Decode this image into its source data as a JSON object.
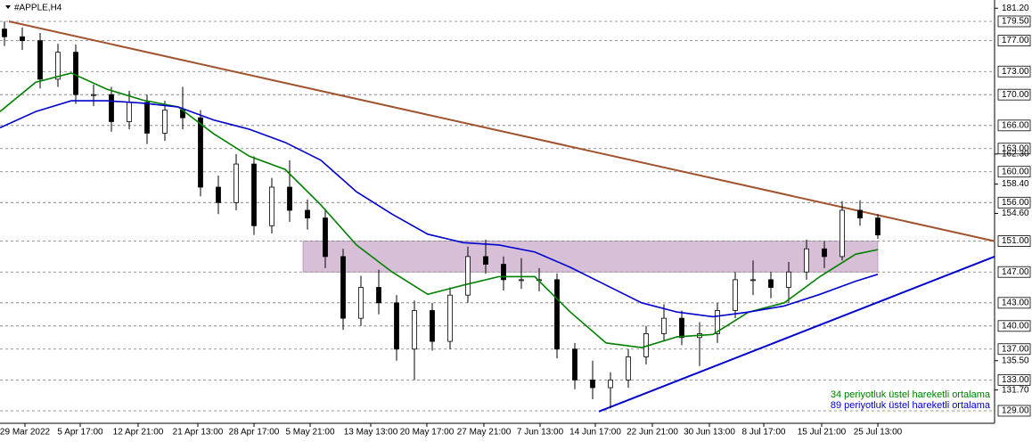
{
  "chart_data": {
    "type": "candlestick",
    "title": "#APPLE,H4",
    "xlim": [
      0,
      223.2
    ],
    "ylim": [
      127.38,
      182.27
    ],
    "xticks": [
      {
        "value": 5.6,
        "label": "29 Mar 2022"
      },
      {
        "value": 18,
        "label": "5 Apr 17:00"
      },
      {
        "value": 31,
        "label": "12 Apr 21:00"
      },
      {
        "value": 44.4,
        "label": "21 Apr 13:00"
      },
      {
        "value": 57,
        "label": "28 Apr 17:00"
      },
      {
        "value": 69.6,
        "label": "5 May 21:00"
      },
      {
        "value": 83.2,
        "label": "13 May 13:00"
      },
      {
        "value": 95.8,
        "label": "20 May 17:00"
      },
      {
        "value": 108.6,
        "label": "27 May 21:00"
      },
      {
        "value": 121.2,
        "label": "7 Jun 13:00"
      },
      {
        "value": 133.6,
        "label": "14 Jun 17:00"
      },
      {
        "value": 146.4,
        "label": "22 Jun 21:00"
      },
      {
        "value": 159.2,
        "label": "30 Jun 13:00"
      },
      {
        "value": 171.4,
        "label": "8 Jul 17:00"
      },
      {
        "value": 184.4,
        "label": "15 Jul 21:00"
      },
      {
        "value": 197,
        "label": "25 Jul 13:00"
      }
    ],
    "yticks": [
      {
        "value": 181.2,
        "label": "181.20"
      },
      {
        "value": 162.3,
        "label": "162.30"
      },
      {
        "value": 158.4,
        "label": "158.40"
      },
      {
        "value": 154.6,
        "label": "154.60"
      },
      {
        "value": 135.5,
        "label": "135.50"
      },
      {
        "value": 131.7,
        "label": "131.70"
      }
    ],
    "levels": [
      {
        "value": 179.5,
        "label": "179.50"
      },
      {
        "value": 177,
        "label": "177.00"
      },
      {
        "value": 173,
        "label": "173.00"
      },
      {
        "value": 170,
        "label": "170.00"
      },
      {
        "value": 166,
        "label": "166.00"
      },
      {
        "value": 163,
        "label": "163.00"
      },
      {
        "value": 160,
        "label": "160.00"
      },
      {
        "value": 156,
        "label": "156.00"
      },
      {
        "value": 151,
        "label": "151.00"
      },
      {
        "value": 147,
        "label": "147.00"
      },
      {
        "value": 143,
        "label": "143.00"
      },
      {
        "value": 140,
        "label": "140.00"
      },
      {
        "value": 137,
        "label": "137.00"
      },
      {
        "value": 133,
        "label": "133.00"
      },
      {
        "value": 129,
        "label": "129.00"
      }
    ],
    "candles": {
      "x": [
        1,
        5,
        9,
        13,
        17,
        21,
        25,
        29,
        33,
        37,
        41,
        45,
        49,
        53,
        57,
        61,
        65,
        69,
        73,
        77,
        81,
        85,
        89,
        93,
        97,
        101,
        105,
        109,
        113,
        117,
        121,
        125,
        129,
        133,
        137,
        141,
        145,
        149,
        153,
        157,
        161,
        165,
        169,
        173,
        177,
        181,
        185,
        189,
        193,
        197
      ],
      "open": [
        178.5,
        177.5,
        177,
        172,
        175.5,
        170,
        170,
        166.5,
        169,
        165,
        168,
        167,
        158,
        156,
        161,
        153,
        158,
        155,
        154,
        149,
        141,
        145,
        143,
        137,
        142,
        138,
        144,
        149,
        148,
        146,
        146,
        146,
        137,
        133,
        132,
        133,
        136,
        139,
        141,
        138.5,
        139,
        142,
        146,
        146,
        145,
        147,
        150,
        149,
        155,
        154
      ],
      "high": [
        179.5,
        178.7,
        178,
        176.6,
        176.5,
        171.3,
        171,
        170.5,
        170,
        169.2,
        171,
        168,
        159.5,
        162.3,
        162,
        159.2,
        161.5,
        156.4,
        155.2,
        150,
        146.5,
        147.3,
        144,
        143.3,
        143,
        145,
        150.3,
        151.2,
        149,
        148.8,
        147.5,
        146.8,
        137.8,
        135.5,
        134,
        137,
        140,
        142.8,
        142,
        140.5,
        143,
        147,
        148.5,
        147,
        148.3,
        151.2,
        151,
        156.2,
        156.3,
        154.5
      ],
      "low": [
        176.3,
        175.8,
        170.8,
        171,
        168.8,
        168.5,
        165.2,
        165.5,
        163.6,
        164,
        165.5,
        156.8,
        154.5,
        155,
        151.8,
        152,
        153.5,
        152.5,
        147.5,
        139.5,
        140,
        141.5,
        135.5,
        133,
        136.8,
        137,
        143,
        146.8,
        144.6,
        144.8,
        144.5,
        135.8,
        131.8,
        130.5,
        129.3,
        132,
        135,
        138,
        137.5,
        134.8,
        137.8,
        141,
        144,
        143.6,
        143,
        146,
        147.5,
        148.5,
        153,
        151.3
      ],
      "close": [
        177.5,
        177,
        172,
        175.5,
        170,
        170,
        166.5,
        169,
        165,
        168,
        167,
        158,
        156,
        161,
        153,
        158,
        155,
        154,
        149,
        141,
        145,
        143,
        137,
        142,
        138,
        144,
        149,
        148,
        146,
        146,
        146,
        137,
        133,
        132,
        133,
        136,
        139,
        141,
        138.5,
        139,
        142,
        146,
        146,
        145,
        147,
        150,
        149,
        155,
        154,
        151.8
      ]
    },
    "series": [
      {
        "name": "34 periyotluk üstel hareketli ortalama",
        "color": "#008000",
        "x": [
          0,
          8,
          16,
          24,
          32,
          40,
          48,
          56,
          64,
          72,
          80,
          88,
          96,
          104,
          112,
          120,
          128,
          136,
          144,
          152,
          160,
          168,
          176,
          184,
          192,
          197
        ],
        "values": [
          167.8,
          171.6,
          172.8,
          170.7,
          169.3,
          168.4,
          164.9,
          162,
          160.3,
          155.7,
          150.5,
          147,
          144.1,
          145.3,
          146.4,
          146.4,
          141.8,
          137.8,
          137.2,
          138.6,
          138.9,
          141.8,
          143,
          146.4,
          149.3,
          149.9
        ]
      },
      {
        "name": "89 periyotluk üstel hareketli ortalama",
        "color": "#0000cd",
        "x": [
          0,
          8,
          16,
          24,
          32,
          40,
          48,
          56,
          64,
          72,
          80,
          88,
          96,
          104,
          112,
          120,
          128,
          136,
          144,
          152,
          160,
          168,
          176,
          184,
          192,
          197
        ],
        "values": [
          165.7,
          167.8,
          169.2,
          169.2,
          168.9,
          168.4,
          166.7,
          165.5,
          163.8,
          161.5,
          157.4,
          154.5,
          151.9,
          150.8,
          150.5,
          149.6,
          147.6,
          145.3,
          143,
          141.8,
          141.2,
          141.8,
          142.6,
          144.1,
          145.8,
          146.7
        ]
      }
    ],
    "trendlines": [
      {
        "color": "#a0522d",
        "x": [
          2,
          223.2
        ],
        "values": [
          179.5,
          151
        ]
      },
      {
        "color": "#0000cd",
        "x": [
          134.4,
          223.2
        ],
        "values": [
          128.9,
          149
        ]
      }
    ],
    "zone": {
      "color": "#d8bfd8",
      "x": [
        68,
        197
      ],
      "values": [
        147,
        151
      ]
    }
  }
}
